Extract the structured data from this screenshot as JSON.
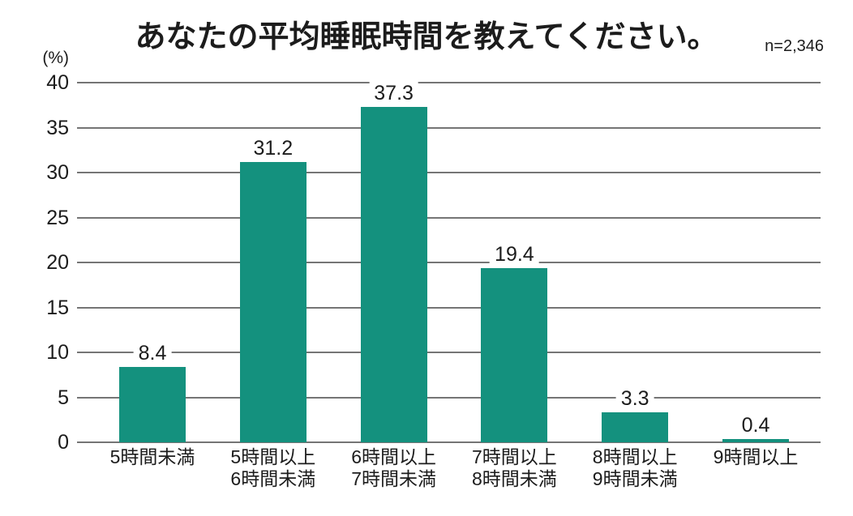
{
  "chart_data": {
    "type": "bar",
    "title": "あなたの平均睡眠時間を教えてください。",
    "sample_size": "n=2,346",
    "categories": [
      "5時間未満",
      "5時間以上\n6時間未満",
      "6時間以上\n7時間未満",
      "7時間以上\n8時間未満",
      "8時間以上\n9時間未満",
      "9時間以上"
    ],
    "values": [
      8.4,
      31.2,
      37.3,
      19.4,
      3.3,
      0.4
    ],
    "value_labels": [
      "8.4",
      "31.2",
      "37.3",
      "19.4",
      "3.3",
      "0.4"
    ],
    "xlabel": "",
    "ylabel": "(%)",
    "ylim": [
      0,
      40
    ],
    "ytick_step": 5,
    "yticks": [
      0,
      5,
      10,
      15,
      20,
      25,
      30,
      35,
      40
    ],
    "grid": "horizontal",
    "legend": "none",
    "bar_color": "#14917e",
    "gridline_color": "#757575",
    "text_color": "#1c1c1c"
  }
}
